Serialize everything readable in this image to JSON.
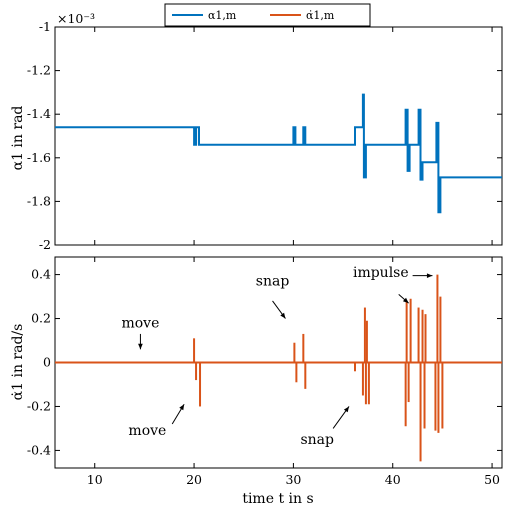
{
  "colors": {
    "blue": "#0072bd",
    "orange": "#d95319",
    "axis": "#000000"
  },
  "legend": {
    "series1": "α1,m",
    "series2": "α̇1,m"
  },
  "chart_data": [
    {
      "type": "line",
      "ylabel": "α1 in rad",
      "exponent_label": "×10⁻³",
      "xlim": [
        6,
        51
      ],
      "ylim": [
        -2.0,
        -1.0
      ],
      "yticks": [
        "-1",
        "-1.2",
        "-1.4",
        "-1.6",
        "-1.8",
        "-2"
      ],
      "ytick_values": [
        -1.0,
        -1.2,
        -1.4,
        -1.6,
        -1.8,
        -2.0
      ],
      "series": [
        {
          "name": "α1,m",
          "x": [
            6,
            20.0,
            20.0,
            20.2,
            20.2,
            20.5,
            20.5,
            30.0,
            30.0,
            30.2,
            30.2,
            31.0,
            31.0,
            31.2,
            31.2,
            36.2,
            36.2,
            37.0,
            37.0,
            37.1,
            37.1,
            37.3,
            37.3,
            37.5,
            37.5,
            41.3,
            41.3,
            41.5,
            41.5,
            41.7,
            41.7,
            42.6,
            42.6,
            42.8,
            42.8,
            43.0,
            43.0,
            43.2,
            43.2,
            44.4,
            44.4,
            44.6,
            44.6,
            44.8,
            44.8,
            51
          ],
          "y": [
            -1.46,
            -1.46,
            -1.54,
            -1.54,
            -1.46,
            -1.46,
            -1.54,
            -1.54,
            -1.46,
            -1.46,
            -1.54,
            -1.54,
            -1.46,
            -1.46,
            -1.54,
            -1.54,
            -1.46,
            -1.46,
            -1.31,
            -1.31,
            -1.69,
            -1.69,
            -1.54,
            -1.54,
            -1.54,
            -1.54,
            -1.38,
            -1.38,
            -1.66,
            -1.66,
            -1.54,
            -1.54,
            -1.38,
            -1.38,
            -1.7,
            -1.7,
            -1.62,
            -1.62,
            -1.62,
            -1.62,
            -1.44,
            -1.44,
            -1.85,
            -1.85,
            -1.69,
            -1.69
          ]
        }
      ]
    },
    {
      "type": "line",
      "ylabel": "α̇1 in rad/s",
      "xlabel": "time t in s",
      "xlim": [
        6,
        51
      ],
      "ylim": [
        -0.48,
        0.48
      ],
      "xticks": [
        "10",
        "20",
        "30",
        "40",
        "50"
      ],
      "xtick_values": [
        10,
        20,
        30,
        40,
        50
      ],
      "yticks": [
        "0.4",
        "0.2",
        "0",
        "-0.2",
        "-0.4"
      ],
      "ytick_values": [
        0.4,
        0.2,
        0.0,
        -0.2,
        -0.4
      ],
      "series": [
        {
          "name": "α̇1,m",
          "spikes": [
            [
              20.0,
              0.11
            ],
            [
              20.2,
              -0.08
            ],
            [
              20.6,
              -0.2
            ],
            [
              30.1,
              0.09
            ],
            [
              30.3,
              -0.09
            ],
            [
              31.0,
              0.13
            ],
            [
              31.2,
              -0.12
            ],
            [
              36.2,
              -0.04
            ],
            [
              37.0,
              -0.15
            ],
            [
              37.2,
              0.25
            ],
            [
              37.3,
              -0.19
            ],
            [
              37.4,
              0.19
            ],
            [
              37.6,
              -0.19
            ],
            [
              41.3,
              -0.29
            ],
            [
              41.4,
              0.28
            ],
            [
              41.6,
              -0.18
            ],
            [
              41.8,
              0.29
            ],
            [
              42.6,
              0.25
            ],
            [
              42.8,
              -0.45
            ],
            [
              43.0,
              0.24
            ],
            [
              43.2,
              -0.3
            ],
            [
              43.3,
              0.22
            ],
            [
              44.3,
              -0.31
            ],
            [
              44.5,
              0.4
            ],
            [
              44.6,
              -0.32
            ],
            [
              44.8,
              0.3
            ],
            [
              45.0,
              -0.3
            ]
          ]
        }
      ],
      "annotations": [
        {
          "text": "move",
          "x": 14.6,
          "y": 0.16
        },
        {
          "text": "move",
          "x": 15.3,
          "y": -0.33
        },
        {
          "text": "snap",
          "x": 27.9,
          "y": 0.35
        },
        {
          "text": "snap",
          "x": 32.4,
          "y": -0.37
        },
        {
          "text": "impulse",
          "x": 38.8,
          "y": 0.39
        }
      ]
    }
  ]
}
